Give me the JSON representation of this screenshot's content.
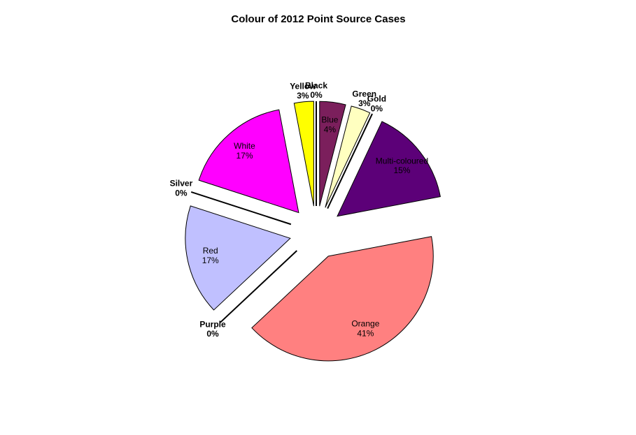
{
  "chart_data": {
    "type": "pie",
    "title": "Colour of 2012 Point Source Cases",
    "categories": [
      "Black",
      "Blue",
      "Green",
      "Gold",
      "Multi-coloured",
      "Orange",
      "Purple",
      "Red",
      "Silver",
      "White",
      "Yellow"
    ],
    "values": [
      0,
      4,
      3,
      0,
      15,
      41,
      0,
      17,
      0,
      17,
      3
    ],
    "value_labels": [
      "0%",
      "4%",
      "3%",
      "0%",
      "15%",
      "41%",
      "0%",
      "17%",
      "0%",
      "17%",
      "3%"
    ],
    "colors": [
      "#000000",
      "#7b1f5c",
      "#ffffc0",
      "#ffffff",
      "#5c0078",
      "#ff8080",
      "#000000",
      "#c0c0ff",
      "#c0c0c0",
      "#ff00ff",
      "#ffff00"
    ]
  }
}
